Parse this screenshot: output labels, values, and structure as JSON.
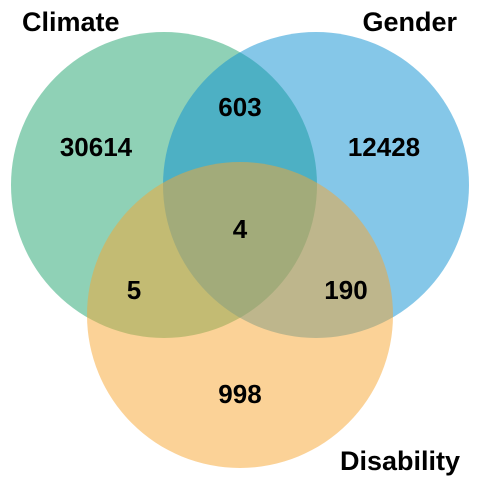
{
  "sets": [
    {
      "key": "climate",
      "name": "Climate",
      "color": "#1fa36e"
    },
    {
      "key": "gender",
      "name": "Gender",
      "color": "#0b8fd1"
    },
    {
      "key": "disability",
      "name": "Disability",
      "color": "#f7a630"
    }
  ],
  "regions": {
    "climate_only": "30614",
    "gender_only": "12428",
    "disability_only": "998",
    "climate_gender": "603",
    "climate_disability": "5",
    "gender_disability": "190",
    "all_three": "4"
  }
}
